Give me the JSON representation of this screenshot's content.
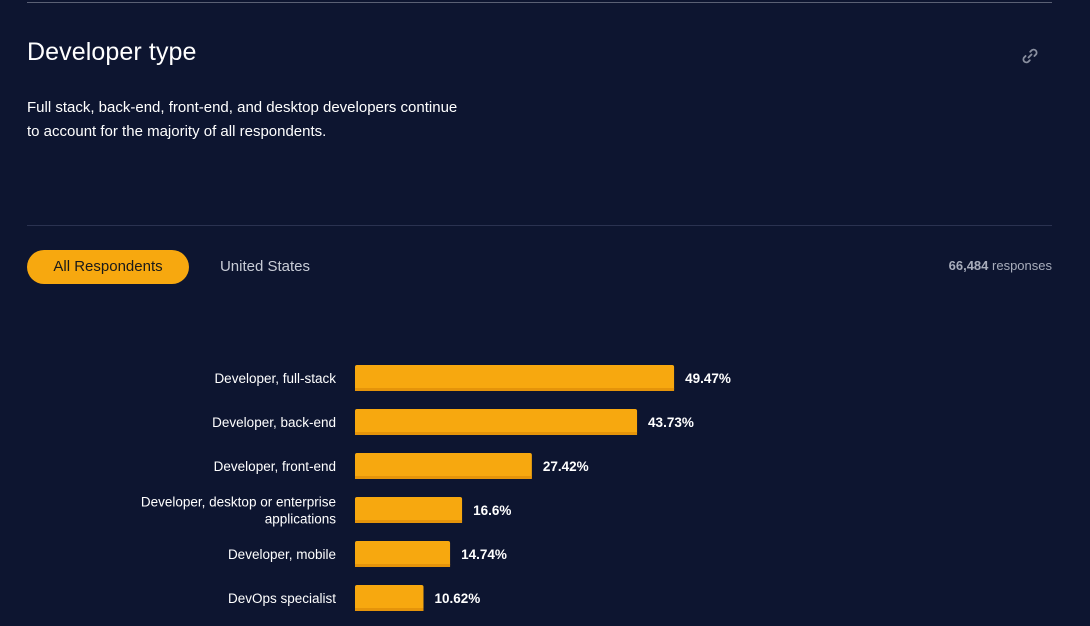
{
  "section": {
    "title": "Developer type",
    "subtitle": "Full stack, back-end, front-end, and desktop developers continue to account for the majority of all respondents.",
    "link_icon": "link-icon"
  },
  "tabs": [
    {
      "label": "All Respondents",
      "active": true
    },
    {
      "label": "United States",
      "active": false
    }
  ],
  "responses": {
    "count": "66,484",
    "label": "responses"
  },
  "colors": {
    "background": "#0d1530",
    "bar": "#f7a80f",
    "bar_shadow": "#e5940a"
  },
  "chart_data": {
    "type": "bar",
    "orientation": "horizontal",
    "categories": [
      [
        "Developer, full-stack"
      ],
      [
        "Developer, back-end"
      ],
      [
        "Developer, front-end"
      ],
      [
        "Developer, desktop or enterprise",
        "applications"
      ],
      [
        "Developer, mobile"
      ],
      [
        "DevOps specialist"
      ]
    ],
    "values": [
      49.47,
      43.73,
      27.42,
      16.6,
      14.74,
      10.62
    ],
    "value_labels": [
      "49.47%",
      "43.73%",
      "27.42%",
      "16.6%",
      "14.74%",
      "10.62%"
    ],
    "xlim": [
      0,
      100
    ],
    "grid": false,
    "legend": "none"
  }
}
